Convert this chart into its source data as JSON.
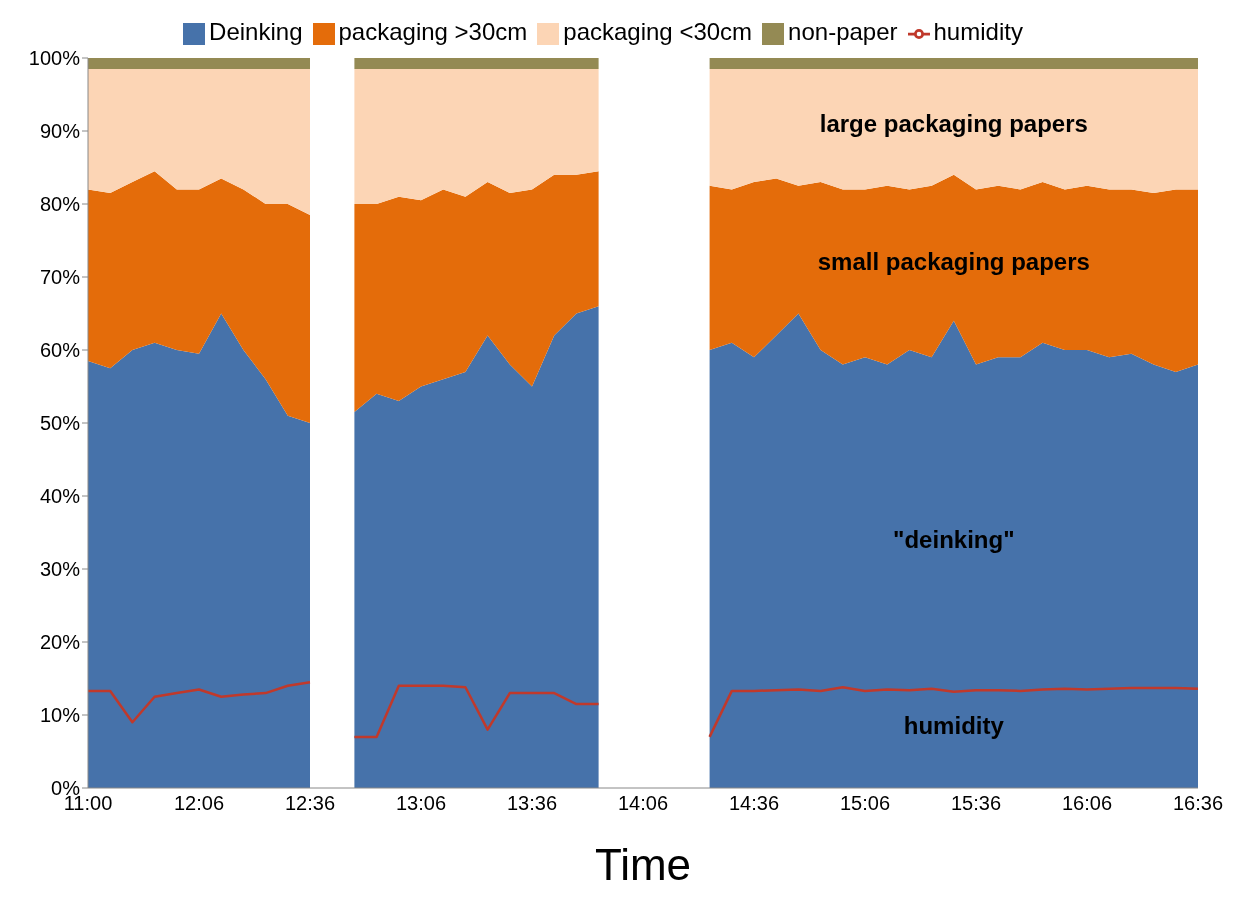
{
  "chart_data": {
    "type": "area",
    "stacked": true,
    "xlabel": "Time",
    "legend": "top",
    "grid": false,
    "categories": [
      "11:00",
      null,
      null,
      null,
      null,
      "12:06",
      null,
      null,
      null,
      null,
      "12:36",
      null,
      null,
      null,
      null,
      "13:06",
      null,
      null,
      null,
      null,
      "13:36",
      null,
      null,
      null,
      null,
      "14:06",
      null,
      null,
      null,
      null,
      "14:36",
      null,
      null,
      null,
      null,
      "15:06",
      null,
      null,
      null,
      null,
      "15:36",
      null,
      null,
      null,
      null,
      "16:06",
      null,
      null,
      null,
      null,
      "16:36"
    ],
    "ylim": [
      0,
      100
    ],
    "yticks": [
      {
        "value": 0,
        "label": "0%"
      },
      {
        "value": 10,
        "label": "10%"
      },
      {
        "value": 20,
        "label": "20%"
      },
      {
        "value": 30,
        "label": "30%"
      },
      {
        "value": 40,
        "label": "40%"
      },
      {
        "value": 50,
        "label": "50%"
      },
      {
        "value": 60,
        "label": "60%"
      },
      {
        "value": 70,
        "label": "70%"
      },
      {
        "value": 80,
        "label": "80%"
      },
      {
        "value": 90,
        "label": "90%"
      },
      {
        "value": 100,
        "label": "100%"
      }
    ],
    "series": [
      {
        "name": "Deinking",
        "color": "#4672aa",
        "values": [
          58.5,
          57.5,
          60,
          61,
          60,
          59.5,
          65,
          60,
          56,
          51,
          50,
          null,
          51.5,
          54,
          53,
          55,
          56,
          57,
          62,
          58,
          55,
          62,
          65,
          66,
          null,
          null,
          null,
          null,
          60,
          61,
          59,
          62,
          65,
          60,
          58,
          59,
          58,
          60,
          59,
          64,
          58,
          59,
          59,
          61,
          60,
          60,
          59,
          59.5,
          58,
          57,
          58
        ]
      },
      {
        "name": "packaging >30cm",
        "color": "#e46c0a",
        "values": [
          23.5,
          24,
          23,
          23.5,
          22,
          22.5,
          18.5,
          22,
          24,
          29,
          28.5,
          null,
          28.5,
          26,
          28,
          25.5,
          26,
          24,
          21,
          23.5,
          27,
          22,
          19,
          18.5,
          null,
          null,
          null,
          null,
          22.5,
          21,
          24,
          21.5,
          17.5,
          23,
          24,
          23,
          24.5,
          22,
          23.5,
          20,
          24,
          23.5,
          23,
          22,
          22,
          22.5,
          23,
          22.5,
          23.5,
          25,
          24
        ]
      },
      {
        "name": "packaging <30cm",
        "color": "#fcd5b5",
        "values": [
          16.5,
          17,
          15.5,
          14,
          16.5,
          16.5,
          15,
          16.5,
          18.5,
          18.5,
          20,
          null,
          18.5,
          18.5,
          17.5,
          18,
          16.5,
          17.5,
          15.5,
          17,
          16.5,
          14.5,
          14.5,
          14,
          null,
          null,
          null,
          null,
          16,
          16.5,
          15.5,
          15,
          16,
          15.5,
          16.5,
          16.5,
          16,
          16.5,
          16,
          14.5,
          16.5,
          16,
          16.5,
          15.5,
          16.5,
          16,
          16.5,
          16.5,
          17,
          16.5,
          16.5
        ]
      },
      {
        "name": "non-paper",
        "color": "#948a54",
        "values": [
          1.5,
          1.5,
          1.5,
          1.5,
          1.5,
          1.5,
          1.5,
          1.5,
          1.5,
          1.5,
          1.5,
          null,
          1.5,
          1.5,
          1.5,
          1.5,
          1.5,
          1.5,
          1.5,
          1.5,
          1.5,
          1.5,
          1.5,
          1.5,
          null,
          null,
          null,
          null,
          1.5,
          1.5,
          1.5,
          1.5,
          1.5,
          1.5,
          1.5,
          1.5,
          1.5,
          1.5,
          1.5,
          1.5,
          1.5,
          1.5,
          1.5,
          1.5,
          1.5,
          1.5,
          1.5,
          1.5,
          1.5,
          1.5,
          1.5
        ]
      },
      {
        "name": "humidity",
        "type": "line",
        "color": "#c0392b",
        "values": [
          13.3,
          13.3,
          9,
          12.5,
          13,
          13.5,
          12.5,
          12.8,
          13,
          14,
          14.5,
          null,
          7,
          7,
          14,
          14,
          14,
          13.8,
          8,
          13,
          13,
          13,
          11.5,
          11.5,
          null,
          null,
          null,
          null,
          7,
          13.3,
          13.3,
          13.4,
          13.5,
          13.3,
          13.8,
          13.3,
          13.5,
          13.4,
          13.6,
          13.2,
          13.4,
          13.4,
          13.3,
          13.5,
          13.6,
          13.5,
          13.6,
          13.7,
          13.7,
          13.7,
          13.6
        ]
      }
    ],
    "annotations": [
      "large packaging papers",
      "small packaging papers",
      "\"deinking\"",
      "humidity"
    ]
  }
}
